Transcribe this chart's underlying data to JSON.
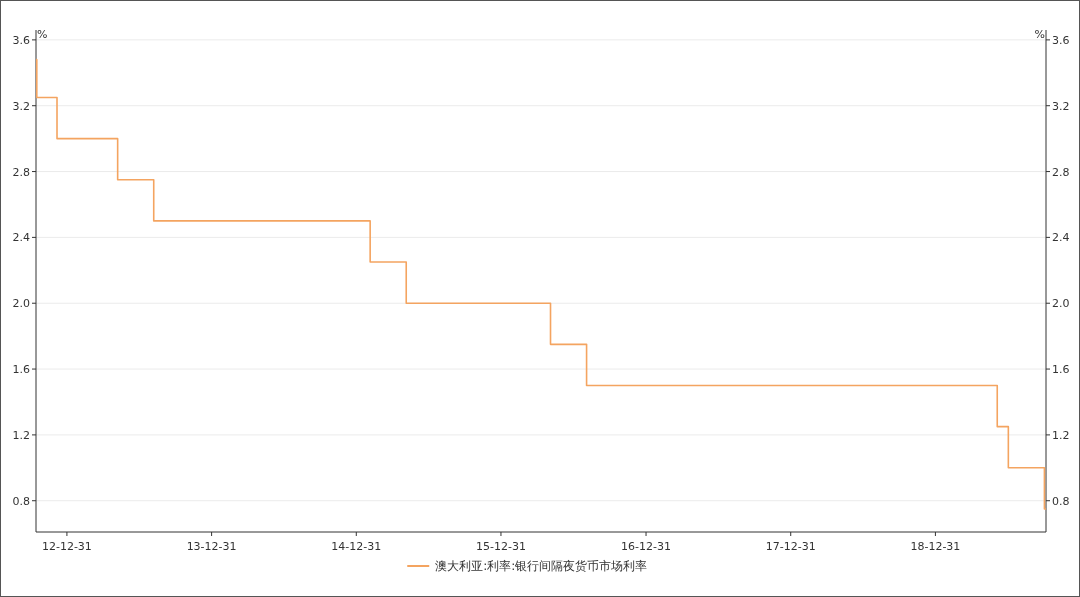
{
  "chart_data": {
    "type": "step",
    "ylabel": "%",
    "y2label": "%",
    "x": [
      "2012-10-14",
      "2012-10-16",
      "2012-12-06",
      "2013-05-08",
      "2013-08-07",
      "2015-02-04",
      "2015-05-06",
      "2016-05-04",
      "2016-08-03",
      "2019-06-05",
      "2019-07-03",
      "2019-10-02",
      "2019-10-06"
    ],
    "series": [
      {
        "name": "澳大利亚:利率:银行间隔夜货币市场利率",
        "color": "#f4a460",
        "values": [
          3.48,
          3.25,
          3.0,
          2.75,
          2.5,
          2.25,
          2.0,
          1.75,
          1.5,
          1.25,
          1.0,
          0.75,
          0.75
        ]
      }
    ],
    "xlim": [
      "2012-10-14",
      "2019-10-06"
    ],
    "xticks": [
      {
        "value": "2012-12-31",
        "label": "12-12-31"
      },
      {
        "value": "2013-12-31",
        "label": "13-12-31"
      },
      {
        "value": "2014-12-31",
        "label": "14-12-31"
      },
      {
        "value": "2015-12-31",
        "label": "15-12-31"
      },
      {
        "value": "2016-12-31",
        "label": "16-12-31"
      },
      {
        "value": "2017-12-31",
        "label": "17-12-31"
      },
      {
        "value": "2018-12-31",
        "label": "18-12-31"
      }
    ],
    "ylim": [
      0.61,
      3.66
    ],
    "yticks": [
      {
        "value": 0.8,
        "label": "0.8"
      },
      {
        "value": 1.2,
        "label": "1.2"
      },
      {
        "value": 1.6,
        "label": "1.6"
      },
      {
        "value": 2.0,
        "label": "2.0"
      },
      {
        "value": 2.4,
        "label": "2.4"
      },
      {
        "value": 2.8,
        "label": "2.8"
      },
      {
        "value": 3.2,
        "label": "3.2"
      },
      {
        "value": 3.6,
        "label": "3.6"
      }
    ],
    "y2lim": [
      0.61,
      3.66
    ],
    "y2ticks": [
      {
        "value": 0.8,
        "label": "0.8"
      },
      {
        "value": 1.2,
        "label": "1.2"
      },
      {
        "value": 1.6,
        "label": "1.6"
      },
      {
        "value": 2.0,
        "label": "2.0"
      },
      {
        "value": 2.4,
        "label": "2.4"
      },
      {
        "value": 2.8,
        "label": "2.8"
      },
      {
        "value": 3.2,
        "label": "3.2"
      },
      {
        "value": 3.6,
        "label": "3.6"
      }
    ],
    "grid": "y",
    "legend": "bottom"
  }
}
